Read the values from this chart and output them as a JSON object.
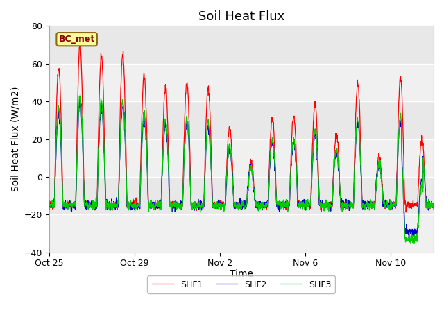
{
  "title": "Soil Heat Flux",
  "ylabel": "Soil Heat Flux (W/m2)",
  "xlabel": "Time",
  "ylim": [
    -40,
    80
  ],
  "yticks": [
    -40,
    -20,
    0,
    20,
    40,
    60,
    80
  ],
  "xtick_labels": [
    "Oct 25",
    "Oct 29",
    "Nov 2",
    "Nov 6",
    "Nov 10"
  ],
  "xtick_positions": [
    0,
    4,
    8,
    12,
    16
  ],
  "legend_label": "BC_met",
  "series_names": [
    "SHF1",
    "SHF2",
    "SHF3"
  ],
  "colors": [
    "#ff0000",
    "#0000cc",
    "#00cc00"
  ],
  "outer_bg": "#ffffff",
  "plot_bg": "#e8e8e8",
  "band_light": "#f0f0f0",
  "title_fontsize": 13,
  "label_fontsize": 10,
  "tick_fontsize": 9,
  "day_amps_shf1": [
    58,
    70,
    65,
    65,
    54,
    48,
    50,
    47,
    26,
    8,
    31,
    32,
    39,
    22,
    50,
    11,
    52,
    20
  ],
  "night_base": -15,
  "noise_shf1": 1.0,
  "noise_shf2": 1.2,
  "noise_shf3": 1.2,
  "shf2_scale": 0.58,
  "shf3_scale": 0.62
}
